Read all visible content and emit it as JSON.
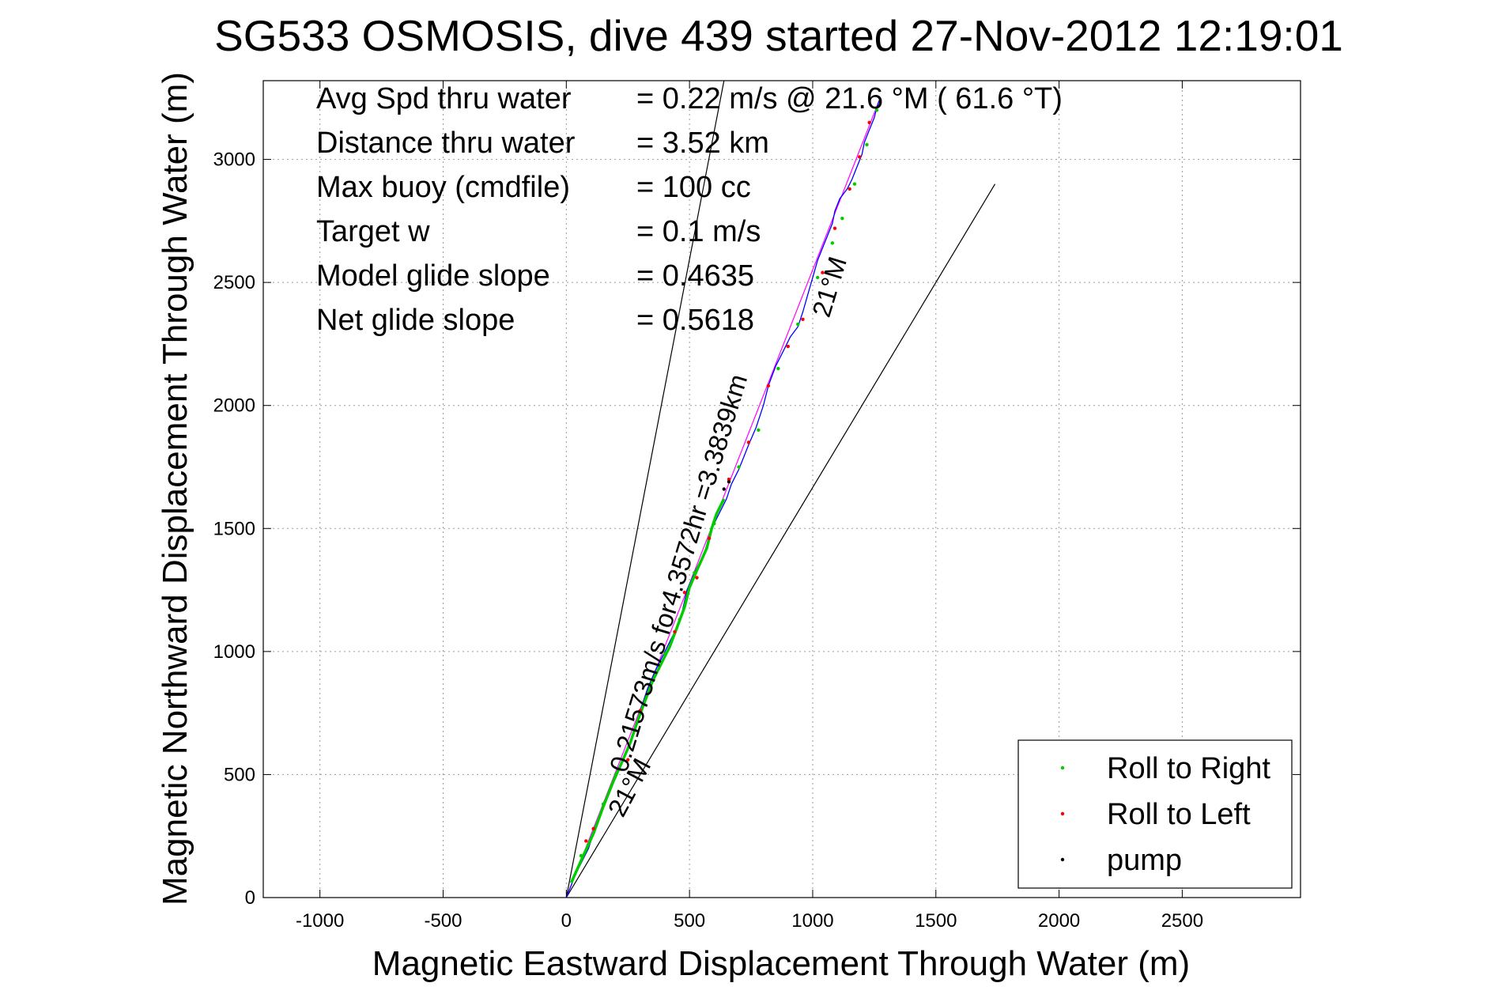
{
  "chart_data": {
    "type": "line",
    "title": "SG533 OSMOSIS, dive 439 started 27-Nov-2012 12:19:01",
    "xlabel": "Magnetic Eastward Displacement Through Water (m)",
    "ylabel": "Magnetic Northward Displacement Through Water (m)",
    "xlim": [
      -1230,
      2980
    ],
    "ylim": [
      0,
      3320
    ],
    "xticks": [
      -1000,
      -500,
      0,
      500,
      1000,
      1500,
      2000,
      2500
    ],
    "yticks": [
      0,
      500,
      1000,
      1500,
      2000,
      2500,
      3000
    ],
    "xtick_labels": [
      "-1000",
      "-500",
      "0",
      "500",
      "1000",
      "1500",
      "2000",
      "2500"
    ],
    "ytick_labels": [
      "0",
      "500",
      "1000",
      "1500",
      "2000",
      "2500",
      "3000"
    ],
    "grid": true,
    "legend_position": "bottom-right",
    "legend": [
      {
        "label": "Roll to Right",
        "color": "#00cc00"
      },
      {
        "label": "Roll to Left",
        "color": "#ff0000"
      },
      {
        "label": "pump",
        "color": "#000000"
      }
    ],
    "stats": [
      {
        "label": "Avg Spd thru water",
        "value": "=  0.22 m/s @  21.6 °M ( 61.6 °T)"
      },
      {
        "label": "Distance thru water",
        "value": "=  3.52 km"
      },
      {
        "label": "Max buoy (cmdfile)",
        "value": "= 100 cc"
      },
      {
        "label": "Target w",
        "value": "= 0.1 m/s"
      },
      {
        "label": "Model glide slope",
        "value": "= 0.4635"
      },
      {
        "label": "Net glide slope",
        "value": "= 0.5618"
      }
    ],
    "annotations": [
      {
        "text": "0.21573m/s for4.3572hr =3.3839km"
      },
      {
        "text": "21°M"
      },
      {
        "text": "21°M"
      }
    ],
    "reference_lines": [
      {
        "name": "bound-upper",
        "x": [
          0,
          640
        ],
        "y": [
          0,
          3320
        ],
        "color": "#000000"
      },
      {
        "name": "bound-lower",
        "x": [
          0,
          1740
        ],
        "y": [
          0,
          2900
        ],
        "color": "#000000"
      },
      {
        "name": "course-line",
        "x": [
          0,
          1270
        ],
        "y": [
          0,
          3240
        ],
        "color": "#ff00ff"
      }
    ],
    "series": [
      {
        "color": "#0000ff",
        "x": [
          0,
          40,
          90,
          130,
          170,
          210,
          240,
          270,
          300,
          330,
          360,
          400,
          440,
          470,
          490,
          520,
          560,
          590,
          620,
          650,
          670,
          700,
          720,
          740,
          770,
          800,
          820,
          850,
          880,
          910,
          940,
          960,
          980,
          1000,
          1020,
          1040,
          1060,
          1080,
          1090,
          1110,
          1140,
          1160,
          1180,
          1200,
          1210,
          1230,
          1250,
          1260,
          1270
        ],
        "y": [
          0,
          100,
          200,
          320,
          420,
          520,
          580,
          660,
          760,
          850,
          920,
          1000,
          1080,
          1160,
          1250,
          1320,
          1400,
          1500,
          1560,
          1620,
          1680,
          1740,
          1790,
          1840,
          1910,
          2000,
          2080,
          2160,
          2220,
          2280,
          2320,
          2380,
          2450,
          2520,
          2590,
          2640,
          2690,
          2740,
          2790,
          2840,
          2880,
          2920,
          2970,
          3020,
          3070,
          3120,
          3170,
          3210,
          3240
        ]
      },
      {
        "color": "#00cc00",
        "x": [
          20,
          60,
          110,
          150,
          190,
          230,
          260,
          290,
          320,
          350,
          380,
          420,
          450,
          480,
          500,
          530,
          570,
          590,
          610,
          640
        ],
        "y": [
          60,
          150,
          260,
          370,
          470,
          560,
          630,
          720,
          800,
          880,
          940,
          1020,
          1100,
          1180,
          1260,
          1330,
          1420,
          1500,
          1560,
          1620
        ]
      }
    ],
    "markers": [
      {
        "type": "Roll to Left",
        "x": [
          80,
          110,
          250,
          300,
          440,
          480,
          530,
          580,
          660,
          740,
          820,
          900,
          960,
          1040,
          1090,
          1150,
          1190,
          1230
        ],
        "y": [
          230,
          280,
          560,
          760,
          1080,
          1240,
          1300,
          1460,
          1700,
          1850,
          2080,
          2240,
          2350,
          2540,
          2720,
          2880,
          3010,
          3150
        ]
      },
      {
        "type": "Roll to Right",
        "x": [
          60,
          150,
          200,
          350,
          400,
          460,
          520,
          600,
          700,
          780,
          860,
          940,
          1020,
          1080,
          1120,
          1170,
          1220,
          1260
        ],
        "y": [
          170,
          380,
          500,
          880,
          990,
          1130,
          1320,
          1520,
          1750,
          1900,
          2150,
          2330,
          2520,
          2660,
          2760,
          2900,
          3060,
          3200
        ]
      },
      {
        "type": "pump",
        "x": [
          640,
          660
        ],
        "y": [
          1660,
          1690
        ]
      }
    ]
  }
}
